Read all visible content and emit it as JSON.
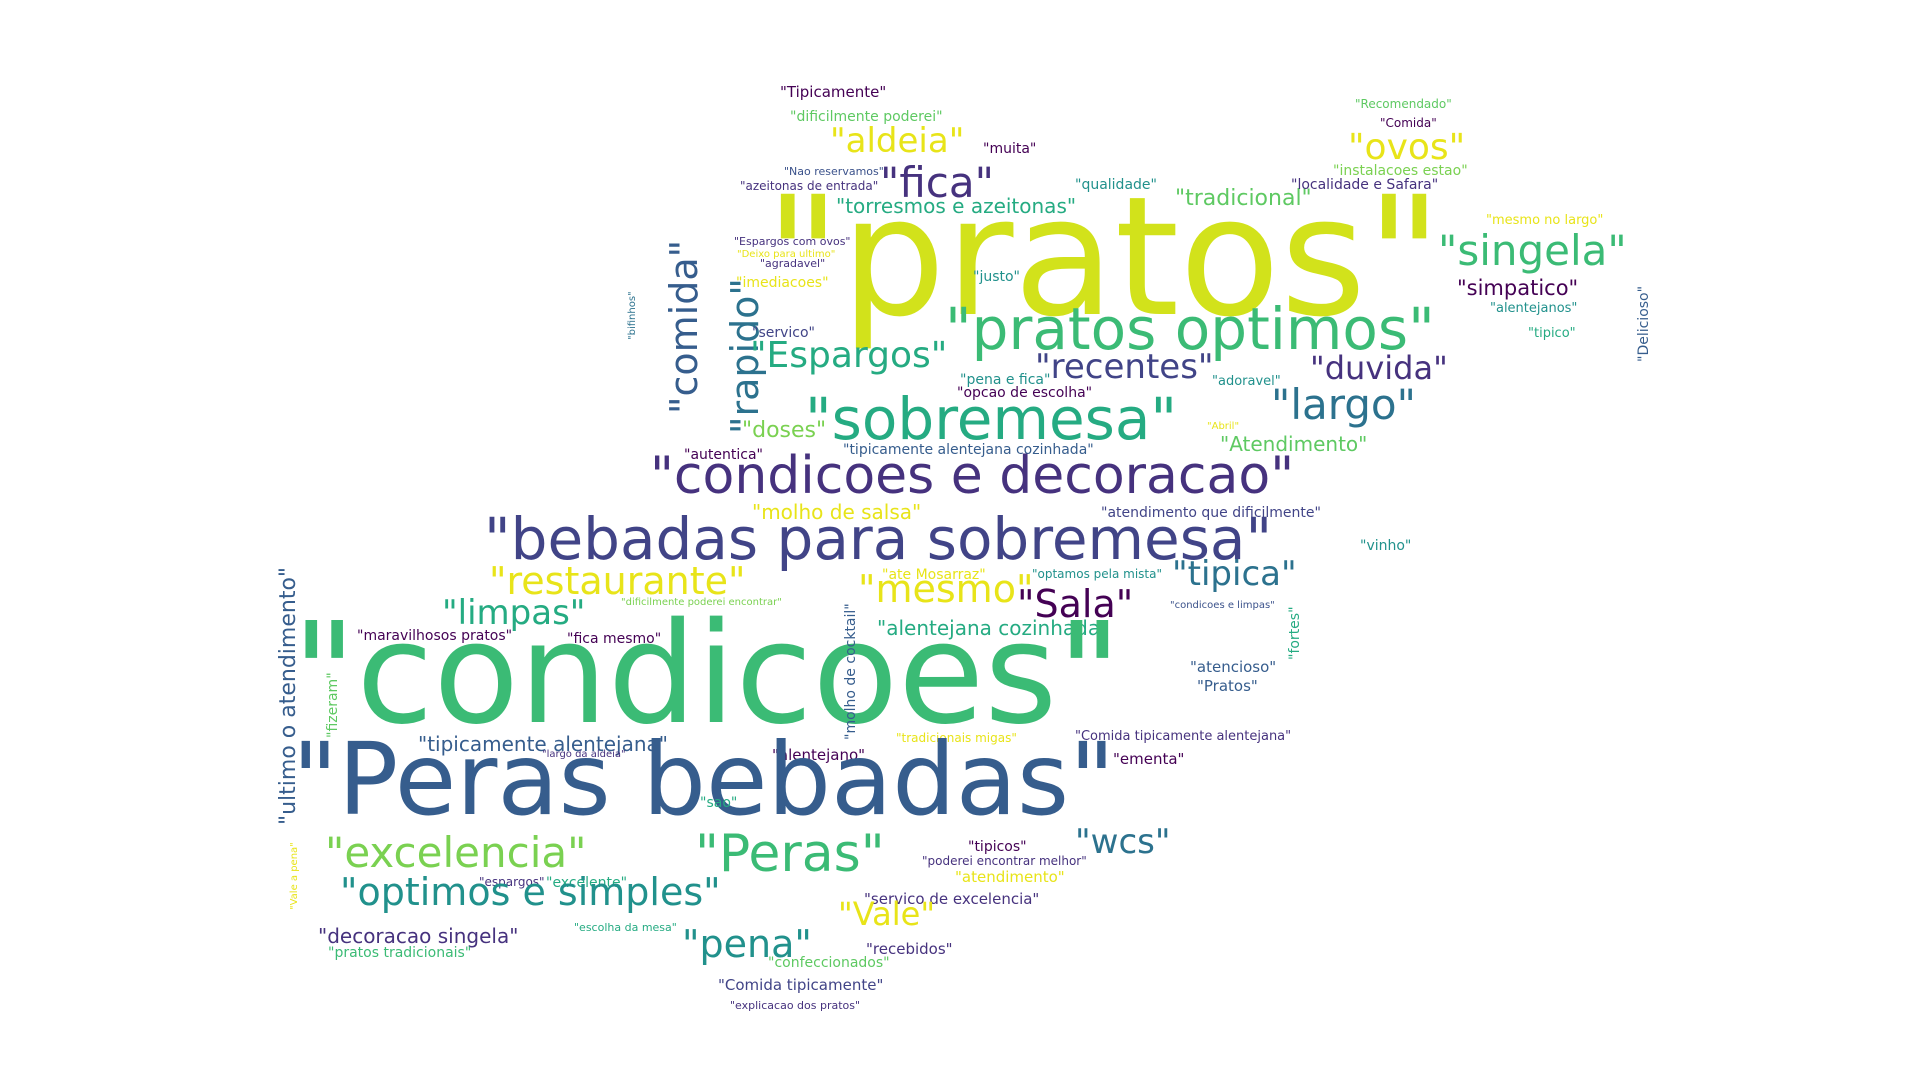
{
  "colors": {
    "lime": "#d2e21b",
    "yellow": "#e8e419",
    "lightgreen": "#7ad151",
    "green": "#5ec962",
    "mint": "#3bbb75",
    "teal": "#21918c",
    "sea": "#25ab82",
    "blue": "#2c728e",
    "steel": "#365d8d",
    "indigo": "#414487",
    "purple": "#46327e",
    "dark": "#440154",
    "navy": "#3b528b"
  },
  "words": [
    {
      "text": "\"Tipicamente\"",
      "color": "dark"
    },
    {
      "text": "\"dificilmente poderei\"",
      "color": "green"
    },
    {
      "text": "\"aldeia\"",
      "color": "yellow"
    },
    {
      "text": "\"muita\"",
      "color": "dark"
    },
    {
      "text": "\"Nao reservamos\"",
      "color": "navy"
    },
    {
      "text": "\"azeitonas de entrada\"",
      "color": "purple"
    },
    {
      "text": "\"fica\"",
      "color": "purple"
    },
    {
      "text": "\"qualidade\"",
      "color": "teal"
    },
    {
      "text": "\"torresmos e azeitonas\"",
      "color": "sea"
    },
    {
      "text": "\"tradicional\"",
      "color": "green"
    },
    {
      "text": "\"Recomendado\"",
      "color": "green"
    },
    {
      "text": "\"Comida\"",
      "color": "dark"
    },
    {
      "text": "\"ovos\"",
      "color": "yellow"
    },
    {
      "text": "\"instalacoes estao\"",
      "color": "lightgreen"
    },
    {
      "text": "\"localidade e Safara\"",
      "color": "purple"
    },
    {
      "text": "\"pratos\"",
      "color": "lime"
    },
    {
      "text": "\"mesmo no largo\"",
      "color": "yellow"
    },
    {
      "text": "\"singela\"",
      "color": "mint"
    },
    {
      "text": "\"Espargos com ovos\"",
      "color": "purple"
    },
    {
      "text": "\"Deixo para ultimo\"",
      "color": "yellow"
    },
    {
      "text": "\"agradavel\"",
      "color": "purple"
    },
    {
      "text": "\"imediacoes\"",
      "color": "yellow"
    },
    {
      "text": "\"justo\"",
      "color": "teal"
    },
    {
      "text": "\"simpatico\"",
      "color": "dark"
    },
    {
      "text": "\"alentejanos\"",
      "color": "teal"
    },
    {
      "text": "\"tipico\"",
      "color": "sea"
    },
    {
      "text": "\"Delicioso\"",
      "color": "steel"
    },
    {
      "text": "\"bifinhos\"",
      "color": "blue"
    },
    {
      "text": "\"comida\"",
      "color": "steel"
    },
    {
      "text": "\"rapido\"",
      "color": "blue"
    },
    {
      "text": "\"servico\"",
      "color": "indigo"
    },
    {
      "text": "\"pratos optimos\"",
      "color": "mint"
    },
    {
      "text": "\"Espargos\"",
      "color": "sea"
    },
    {
      "text": "\"recentes\"",
      "color": "indigo"
    },
    {
      "text": "\"duvida\"",
      "color": "purple"
    },
    {
      "text": "\"pena e fica\"",
      "color": "teal"
    },
    {
      "text": "\"adoravel\"",
      "color": "teal"
    },
    {
      "text": "\"opcao de escolha\"",
      "color": "dark"
    },
    {
      "text": "\"sobremesa\"",
      "color": "sea"
    },
    {
      "text": "\"largo\"",
      "color": "blue"
    },
    {
      "text": "\"doses\"",
      "color": "lightgreen"
    },
    {
      "text": "\"Abril\"",
      "color": "yellow"
    },
    {
      "text": "\"Atendimento\"",
      "color": "green"
    },
    {
      "text": "\"autentica\"",
      "color": "dark"
    },
    {
      "text": "\"tipicamente alentejana cozinhada\"",
      "color": "steel"
    },
    {
      "text": "\"condicoes e decoracao\"",
      "color": "purple"
    },
    {
      "text": "\"molho de salsa\"",
      "color": "yellow"
    },
    {
      "text": "\"atendimento que dificilmente\"",
      "color": "indigo"
    },
    {
      "text": "\"bebadas para sobremesa\"",
      "color": "indigo"
    },
    {
      "text": "\"vinho\"",
      "color": "teal"
    },
    {
      "text": "\"restaurante\"",
      "color": "yellow"
    },
    {
      "text": "\"ate Mosarraz\"",
      "color": "yellow"
    },
    {
      "text": "\"optamos pela mista\"",
      "color": "teal"
    },
    {
      "text": "\"tipica\"",
      "color": "blue"
    },
    {
      "text": "\"mesmo\"",
      "color": "yellow"
    },
    {
      "text": "\"Sala\"",
      "color": "dark"
    },
    {
      "text": "\"limpas\"",
      "color": "sea"
    },
    {
      "text": "\"dificilmente poderei encontrar\"",
      "color": "lightgreen"
    },
    {
      "text": "\"condicoes e limpas\"",
      "color": "navy"
    },
    {
      "text": "\"alentejana cozinhada\"",
      "color": "sea"
    },
    {
      "text": "\"ultimo o atendimento\"",
      "color": "steel"
    },
    {
      "text": "\"maravilhosos pratos\"",
      "color": "dark"
    },
    {
      "text": "\"fica mesmo\"",
      "color": "dark"
    },
    {
      "text": "\"condicoes\"",
      "color": "mint"
    },
    {
      "text": "\"molho de cocktail\"",
      "color": "steel"
    },
    {
      "text": "\"fortes\"",
      "color": "sea"
    },
    {
      "text": "\"atencioso\"",
      "color": "steel"
    },
    {
      "text": "\"Pratos\"",
      "color": "steel"
    },
    {
      "text": "\"fizeram\"",
      "color": "green"
    },
    {
      "text": "\"tipicamente alentejana\"",
      "color": "steel"
    },
    {
      "text": "\"largo da aldeia\"",
      "color": "purple"
    },
    {
      "text": "\"tradicionais migas\"",
      "color": "yellow"
    },
    {
      "text": "\"Comida tipicamente alentejana\"",
      "color": "purple"
    },
    {
      "text": "\"alentejano\"",
      "color": "dark"
    },
    {
      "text": "\"ementa\"",
      "color": "dark"
    },
    {
      "text": "\"Peras bebadas\"",
      "color": "steel"
    },
    {
      "text": "\"sao\"",
      "color": "sea"
    },
    {
      "text": "\"excelencia\"",
      "color": "lightgreen"
    },
    {
      "text": "\"Peras\"",
      "color": "mint"
    },
    {
      "text": "\"tipicos\"",
      "color": "dark"
    },
    {
      "text": "\"poderei encontrar melhor\"",
      "color": "purple"
    },
    {
      "text": "\"wcs\"",
      "color": "blue"
    },
    {
      "text": "\"Vale a pena\"",
      "color": "yellow"
    },
    {
      "text": "\"espargos\"",
      "color": "purple"
    },
    {
      "text": "\"excelente\"",
      "color": "sea"
    },
    {
      "text": "\"atendimento\"",
      "color": "yellow"
    },
    {
      "text": "\"optimos e simples\"",
      "color": "teal"
    },
    {
      "text": "\"servico de excelencia\"",
      "color": "purple"
    },
    {
      "text": "\"Vale\"",
      "color": "yellow"
    },
    {
      "text": "\"escolha da mesa\"",
      "color": "sea"
    },
    {
      "text": "\"decoracao singela\"",
      "color": "purple"
    },
    {
      "text": "\"pena\"",
      "color": "teal"
    },
    {
      "text": "\"recebidos\"",
      "color": "purple"
    },
    {
      "text": "\"pratos tradicionais\"",
      "color": "mint"
    },
    {
      "text": "\"confeccionados\"",
      "color": "green"
    },
    {
      "text": "\"Comida tipicamente\"",
      "color": "indigo"
    },
    {
      "text": "\"explicacao dos pratos\"",
      "color": "purple"
    }
  ]
}
